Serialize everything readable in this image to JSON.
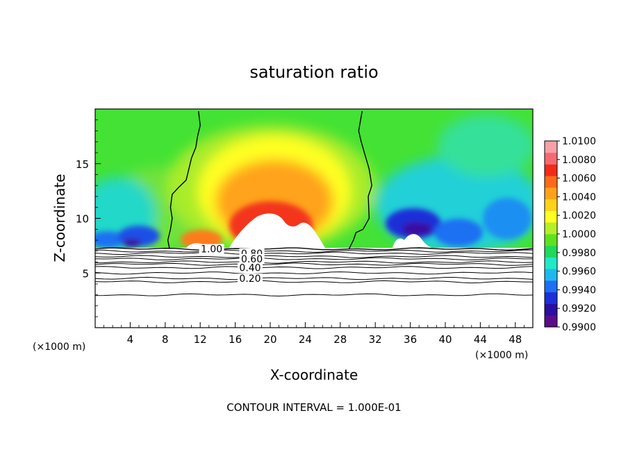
{
  "chart_data": {
    "type": "heatmap",
    "title": "saturation ratio",
    "xlabel": "X-coordinate",
    "ylabel": "Z-coordinate",
    "x_unit_left": "(×1000 m)",
    "x_unit_right": "(×1000 m)",
    "footer": "CONTOUR INTERVAL = 1.000E-01",
    "xlim": [
      0,
      50
    ],
    "ylim": [
      0,
      20
    ],
    "x_ticks": [
      4,
      8,
      12,
      16,
      20,
      24,
      28,
      32,
      36,
      40,
      44,
      48
    ],
    "y_ticks": [
      5,
      10,
      15
    ],
    "colorbar": {
      "min": 0.99,
      "max": 1.01,
      "labels": [
        "1.0100",
        "1.0080",
        "1.0060",
        "1.0040",
        "1.0020",
        "1.0000",
        "0.9980",
        "0.9960",
        "0.9940",
        "0.9920",
        "0.9900"
      ],
      "colors": [
        "#5a0d8a",
        "#2a0fa0",
        "#1d2fd8",
        "#1e6ff2",
        "#1eb8f0",
        "#22e8c8",
        "#20d85a",
        "#5fe21e",
        "#b5ee2a",
        "#ffff22",
        "#ffd21a",
        "#ffa21a",
        "#ff6a1a",
        "#f32a1a",
        "#f56a72",
        "#f7a0a6"
      ]
    },
    "surface_level_z": 7.2,
    "contour_lines": [
      {
        "label": "1.00",
        "label_x": 13.3
      },
      {
        "label": "0.80",
        "label_x": 17.9
      },
      {
        "label": "0.60",
        "label_x": 17.9
      },
      {
        "label": "0.40",
        "label_x": 17.7
      },
      {
        "label": "0.20",
        "label_x": 17.7
      }
    ],
    "lower_lines_z": [
      7.2,
      7.0,
      6.8,
      6.5,
      6.3,
      6.0,
      5.8,
      5.5,
      5.0,
      4.5,
      4.2,
      3.0
    ],
    "unity_contours": [
      {
        "side": "left",
        "x": [
          11.8,
          12.0,
          11.7,
          11.5,
          11.0,
          10.4,
          9.5,
          8.8,
          8.6,
          8.8,
          8.6,
          8.3,
          8.5
        ],
        "z": [
          19.8,
          18.5,
          17.5,
          16.5,
          15.5,
          13.5,
          12.8,
          12.2,
          11.0,
          10.0,
          9.0,
          8.0,
          7.2
        ]
      },
      {
        "side": "right",
        "x": [
          30.5,
          30.1,
          30.4,
          31.3,
          31.6,
          31.2,
          31.3,
          30.6,
          29.8,
          29.5,
          29.0
        ],
        "z": [
          19.8,
          18.0,
          17.0,
          14.5,
          13.0,
          12.0,
          10.0,
          9.0,
          8.7,
          8.0,
          7.2
        ]
      }
    ],
    "features": [
      {
        "kind": "high",
        "x": 20.5,
        "z": 11.5,
        "value": 1.007
      },
      {
        "kind": "high",
        "x": 12.5,
        "z": 8.6,
        "value": 1.006
      },
      {
        "kind": "low",
        "x": 36.5,
        "z": 9.0,
        "value": 0.9905
      },
      {
        "kind": "low",
        "x": 4.5,
        "z": 8.2,
        "value": 0.9925
      },
      {
        "kind": "low",
        "x": 1.5,
        "z": 8.0,
        "value": 0.993
      }
    ]
  }
}
